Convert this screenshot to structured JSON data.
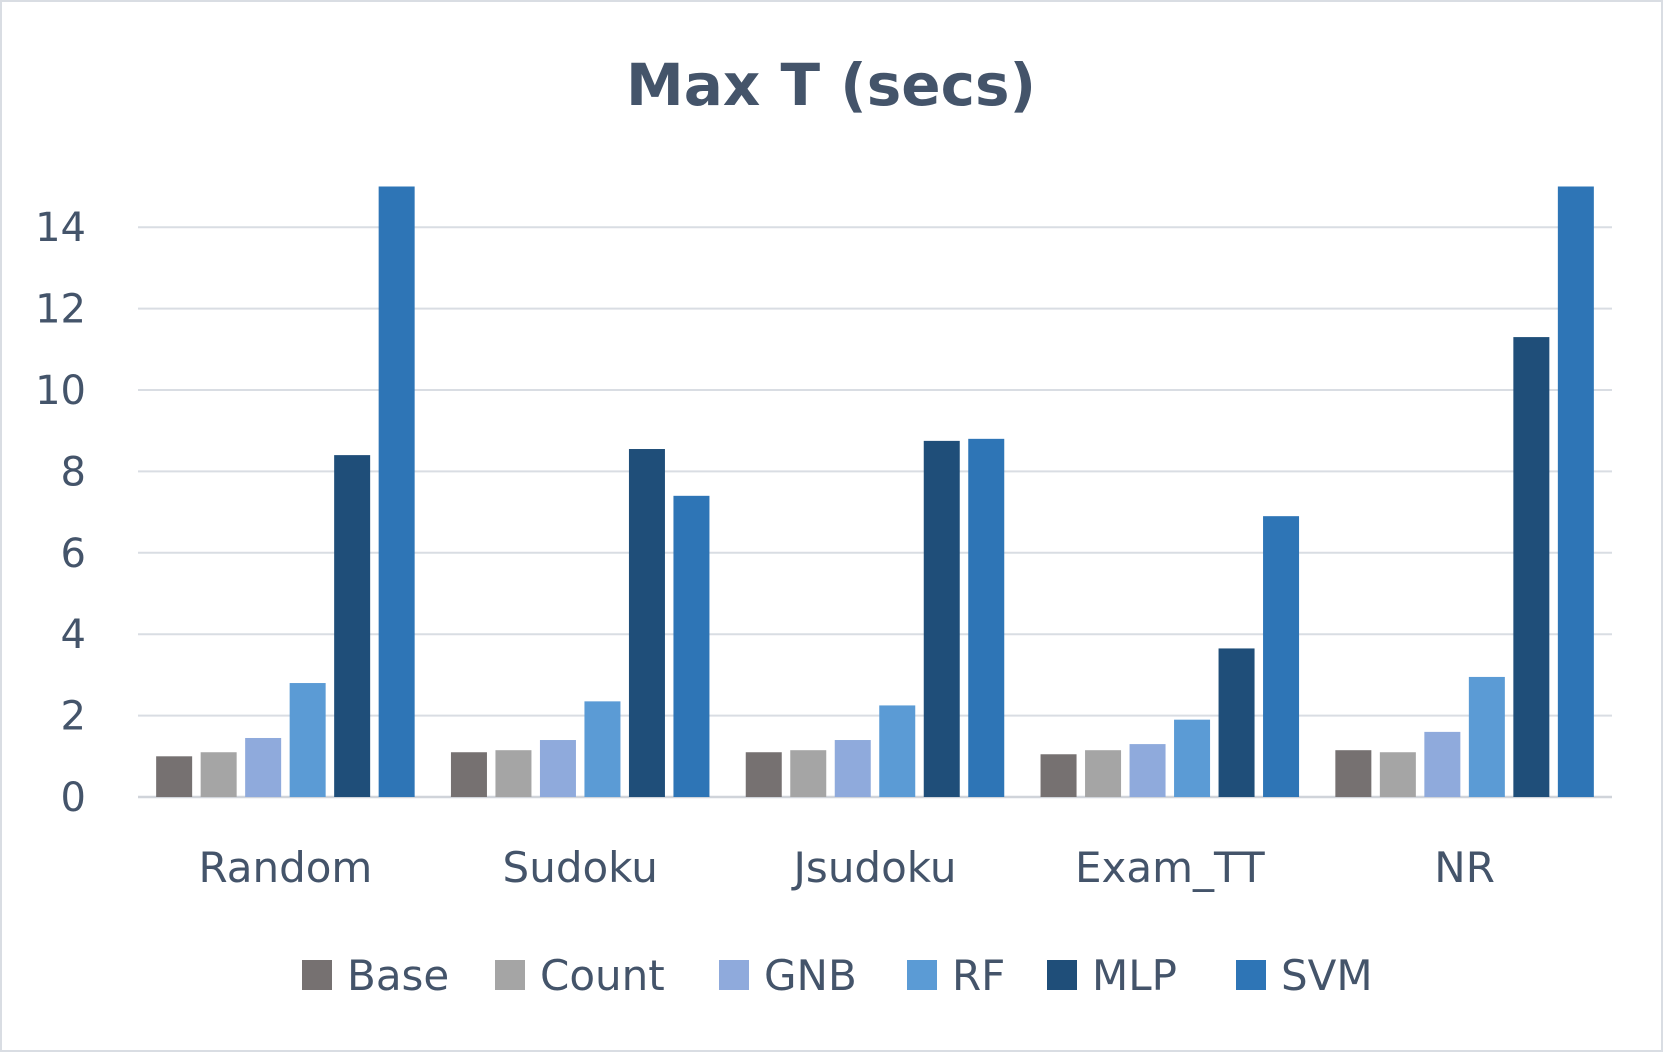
{
  "chart_data": {
    "type": "bar",
    "title": "Max T (secs)",
    "xlabel": "",
    "ylabel": "",
    "ylim": [
      0,
      15
    ],
    "yticks": [
      "0",
      "2",
      "4",
      "6",
      "8",
      "10",
      "12",
      "14"
    ],
    "grid": true,
    "legend_position": "bottom",
    "categories": [
      "Random",
      "Sudoku",
      "Jsudoku",
      "Exam_TT",
      "NR"
    ],
    "series": [
      {
        "name": "Base",
        "color": "#767171",
        "values": [
          1.0,
          1.1,
          1.1,
          1.05,
          1.15
        ]
      },
      {
        "name": "Count",
        "color": "#a5a5a5",
        "values": [
          1.1,
          1.15,
          1.15,
          1.15,
          1.1
        ]
      },
      {
        "name": "GNB",
        "color": "#8faadc",
        "values": [
          1.45,
          1.4,
          1.4,
          1.3,
          1.6
        ]
      },
      {
        "name": "RF",
        "color": "#5b9bd5",
        "values": [
          2.8,
          2.35,
          2.25,
          1.9,
          2.95
        ]
      },
      {
        "name": "MLP",
        "color": "#1f4e79",
        "values": [
          8.4,
          8.55,
          8.75,
          3.65,
          11.3
        ]
      },
      {
        "name": "SVM",
        "color": "#2e75b6",
        "values": [
          15,
          7.4,
          8.8,
          6.9,
          15
        ]
      }
    ]
  }
}
